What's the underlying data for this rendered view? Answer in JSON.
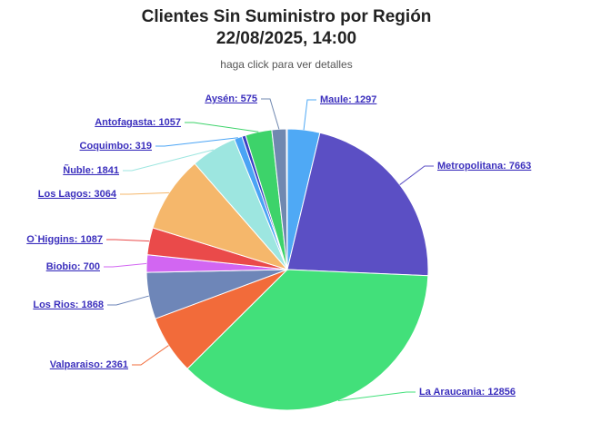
{
  "chart_data": {
    "type": "pie",
    "title": [
      "Clientes Sin Suministro por Región",
      "22/08/2025, 14:00"
    ],
    "subtitle": "haga click para ver detalles",
    "values": [
      1297,
      7663,
      12856,
      2361,
      1868,
      700,
      1087,
      3064,
      1841,
      319,
      150,
      1057,
      575,
      40
    ],
    "value_labels": [
      "Maule: 1297",
      "Metropolitana: 7663",
      "La Araucania: 12856",
      "Valparaiso: 2361",
      "Los Rios: 1868",
      "Biobio: 700",
      "O`Higgins: 1087",
      "Los Lagos: 3064",
      "Ñuble: 1841",
      "Coquimbo: 319",
      null,
      "Antofagasta: 1057",
      "Aysén: 575",
      null
    ],
    "colors": [
      "#4fa9f5",
      "#5b4fc4",
      "#42e07a",
      "#f26b3a",
      "#6e86b8",
      "#d266f2",
      "#ea4a4a",
      "#f5b76b",
      "#9de6e0",
      "#4aa4f5",
      "#3a3fc4",
      "#3dd36a",
      "#7088b0",
      "#f5a6d0"
    ]
  }
}
